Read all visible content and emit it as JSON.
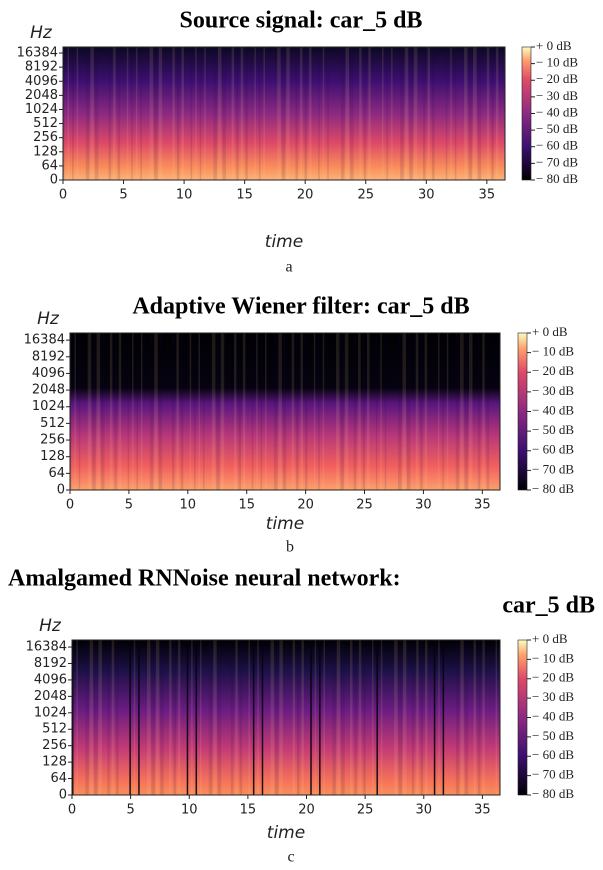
{
  "chart_data": [
    {
      "type": "spectrogram",
      "title": [
        "Source signal: car_5 dB"
      ],
      "x_label": "time",
      "y_label": "Hz",
      "caption": "a",
      "xlim": [
        0,
        36.5
      ],
      "xticks": [
        0,
        5,
        10,
        15,
        20,
        25,
        30,
        35
      ],
      "yscale": "symlog",
      "base": 2,
      "linthresh": 64,
      "ylim": [
        0,
        22050
      ],
      "yticks": [
        0,
        64,
        128,
        256,
        512,
        1024,
        2048,
        4096,
        8192,
        16384
      ],
      "clim": [
        -80,
        0
      ],
      "cticks": [
        {
          "value": 0,
          "label": "+ 0 dB"
        },
        {
          "value": -10,
          "label": "− 10 dB"
        },
        {
          "value": -20,
          "label": "− 20 dB"
        },
        {
          "value": -30,
          "label": "− 30 dB"
        },
        {
          "value": -40,
          "label": "− 40 dB"
        },
        {
          "value": -50,
          "label": "− 50 dB"
        },
        {
          "value": -60,
          "label": "− 60 dB"
        },
        {
          "value": -70,
          "label": "− 70 dB"
        },
        {
          "value": -80,
          "label": "− 80 dB"
        }
      ]
    },
    {
      "type": "spectrogram",
      "title": [
        "Adaptive Wiener filter: car_5 dB"
      ],
      "x_label": "time",
      "y_label": "Hz",
      "caption": "b",
      "xlim": [
        0,
        36.5
      ],
      "xticks": [
        0,
        5,
        10,
        15,
        20,
        25,
        30,
        35
      ],
      "yscale": "symlog",
      "base": 2,
      "linthresh": 64,
      "ylim": [
        0,
        22050
      ],
      "yticks": [
        0,
        64,
        128,
        256,
        512,
        1024,
        2048,
        4096,
        8192,
        16384
      ],
      "clim": [
        -80,
        0
      ],
      "cticks": [
        {
          "value": 0,
          "label": "+ 0 dB"
        },
        {
          "value": -10,
          "label": "− 10 dB"
        },
        {
          "value": -20,
          "label": "− 20 dB"
        },
        {
          "value": -30,
          "label": "− 30 dB"
        },
        {
          "value": -40,
          "label": "− 40 dB"
        },
        {
          "value": -50,
          "label": "− 50 dB"
        },
        {
          "value": -60,
          "label": "− 60 dB"
        },
        {
          "value": -70,
          "label": "− 70 dB"
        },
        {
          "value": -80,
          "label": "− 80 dB"
        }
      ]
    },
    {
      "type": "spectrogram",
      "title": [
        "Amalgamed RNNoise neural network:",
        "car_5 dB"
      ],
      "x_label": "time",
      "y_label": "Hz",
      "caption": "c",
      "xlim": [
        0,
        36.5
      ],
      "xticks": [
        0,
        5,
        10,
        15,
        20,
        25,
        30,
        35
      ],
      "yscale": "symlog",
      "base": 2,
      "linthresh": 64,
      "ylim": [
        0,
        22050
      ],
      "yticks": [
        0,
        64,
        128,
        256,
        512,
        1024,
        2048,
        4096,
        8192,
        16384
      ],
      "clim": [
        -80,
        0
      ],
      "cticks": [
        {
          "value": 0,
          "label": "+ 0 dB"
        },
        {
          "value": -10,
          "label": "− 10 dB"
        },
        {
          "value": -20,
          "label": "− 20 dB"
        },
        {
          "value": -30,
          "label": "− 30 dB"
        },
        {
          "value": -40,
          "label": "− 40 dB"
        },
        {
          "value": -50,
          "label": "− 50 dB"
        },
        {
          "value": -60,
          "label": "− 60 dB"
        },
        {
          "value": -70,
          "label": "− 70 dB"
        },
        {
          "value": -80,
          "label": "− 80 dB"
        }
      ]
    }
  ]
}
